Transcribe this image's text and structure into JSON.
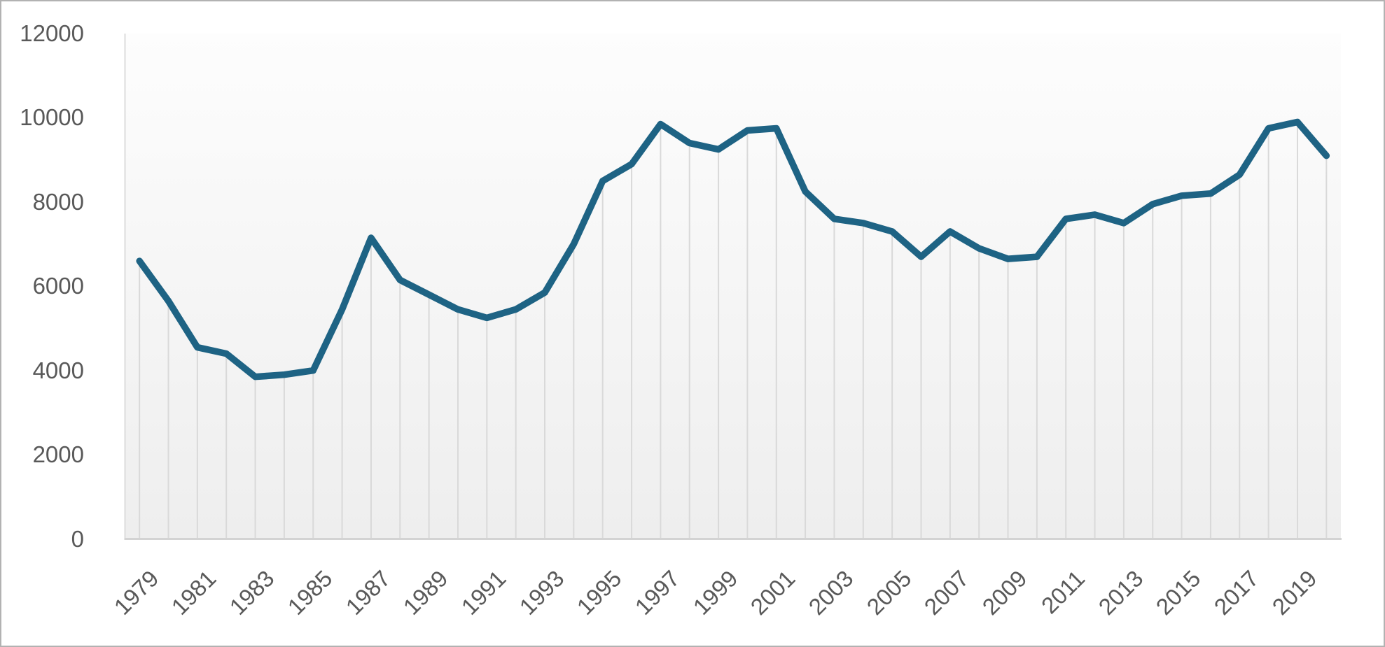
{
  "chart_data": {
    "type": "line",
    "title": "",
    "xlabel": "",
    "ylabel": "",
    "x": [
      1979,
      1980,
      1981,
      1982,
      1983,
      1984,
      1985,
      1986,
      1987,
      1988,
      1989,
      1990,
      1991,
      1992,
      1993,
      1994,
      1995,
      1996,
      1997,
      1998,
      1999,
      2000,
      2001,
      2002,
      2003,
      2004,
      2005,
      2006,
      2007,
      2008,
      2009,
      2010,
      2011,
      2012,
      2013,
      2014,
      2015,
      2016,
      2017,
      2018,
      2019,
      2020
    ],
    "values": [
      6600,
      5650,
      4550,
      4400,
      3850,
      3900,
      4000,
      5450,
      7150,
      6150,
      5800,
      5450,
      5250,
      5450,
      5850,
      7000,
      8500,
      8900,
      9850,
      9400,
      9250,
      9700,
      9750,
      8250,
      7600,
      7500,
      7300,
      6700,
      7300,
      6900,
      6650,
      6700,
      7600,
      7700,
      7500,
      7950,
      8150,
      8200,
      8650,
      9750,
      9900,
      9100
    ],
    "y_ticks": [
      0,
      2000,
      4000,
      6000,
      8000,
      10000,
      12000
    ],
    "y_tick_labels": [
      "0",
      "2000",
      "4000",
      "6000",
      "8000",
      "10000",
      "12000"
    ],
    "x_tick_labels": [
      "1979",
      "1981",
      "1983",
      "1985",
      "1987",
      "1989",
      "1991",
      "1993",
      "1995",
      "1997",
      "1999",
      "2001",
      "2003",
      "2005",
      "2007",
      "2009",
      "2011",
      "2013",
      "2015",
      "2017",
      "2019"
    ],
    "ylim": [
      0,
      12000
    ],
    "legend": "none",
    "grid": "vertical drop-lines from each data point to baseline",
    "colors": {
      "line": "#1e6384",
      "drop_line": "#d9d9d9",
      "axis_line": "#d3d3d3",
      "plot_edge": "#dcdcdc",
      "tick_label": "#595959",
      "canvas_border": "#b2b2b2",
      "background_top": "#fdfdfd",
      "background_bottom": "#eeeeee"
    }
  }
}
